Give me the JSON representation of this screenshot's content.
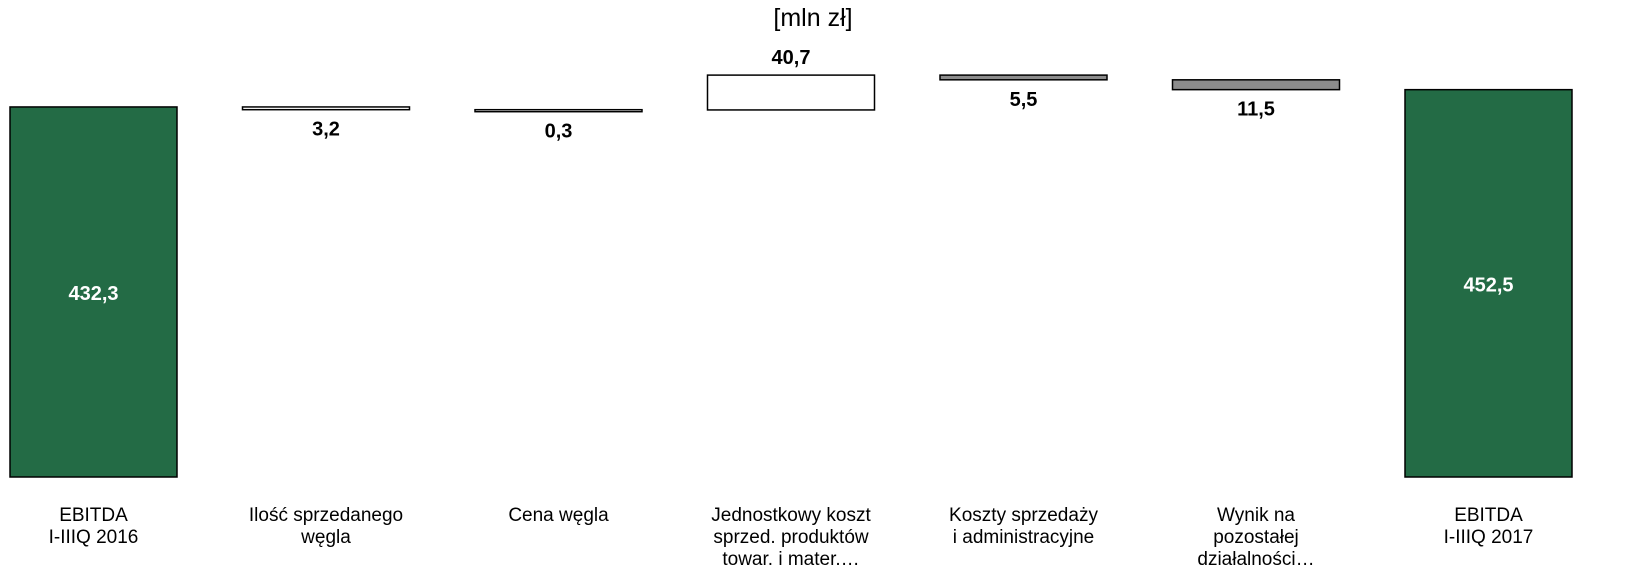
{
  "chart_data": {
    "type": "bar",
    "subtype": "waterfall",
    "unit_label": "[mln zł]",
    "categories": [
      [
        "EBITDA",
        "I-IIIQ 2016"
      ],
      [
        "Ilość sprzedanego",
        "węgla"
      ],
      [
        "Cena węgla"
      ],
      [
        "Jednostkowy koszt",
        "sprzed. produktów",
        "towar. i mater.…"
      ],
      [
        "Koszty sprzedaży",
        "i administracyjne"
      ],
      [
        "Wynik na",
        "pozostałej",
        "działalności…"
      ],
      [
        "EBITDA",
        "I-IIIQ 2017"
      ]
    ],
    "labels": [
      "432,3",
      "3,2",
      "0,3",
      "40,7",
      "5,5",
      "11,5",
      "452,5"
    ],
    "steps": [
      {
        "kind": "total",
        "value": 432.3
      },
      {
        "kind": "decrease",
        "value": 3.2
      },
      {
        "kind": "decrease",
        "value": 0.3
      },
      {
        "kind": "increase",
        "value": 40.7
      },
      {
        "kind": "decrease",
        "value": 5.5
      },
      {
        "kind": "decrease",
        "value": 11.5
      },
      {
        "kind": "total",
        "value": 452.5
      }
    ],
    "colors": {
      "total": "#236b45",
      "increase": "#ffffff",
      "decrease_small": "#ffffff",
      "decrease": "#8c8c8c",
      "stroke": "#000000"
    },
    "ylim": [
      0,
      480
    ],
    "grid": false,
    "legend": "none"
  }
}
